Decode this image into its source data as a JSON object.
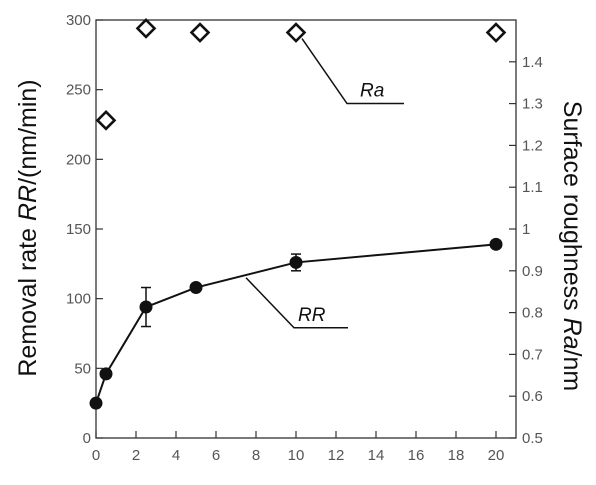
{
  "chart_data": {
    "type": "line",
    "title": "",
    "x": {
      "label": "",
      "range": [
        0,
        21
      ],
      "ticks": [
        0,
        2,
        4,
        6,
        8,
        10,
        12,
        14,
        16,
        18,
        20
      ]
    },
    "y_left": {
      "label_plain": "Removal rate ",
      "label_italic": "RR",
      "label_unit": "/(nm/min)",
      "range": [
        0,
        300
      ],
      "ticks": [
        0,
        50,
        100,
        150,
        200,
        250,
        300
      ]
    },
    "y_right": {
      "label_plain": "Surface roughness ",
      "label_italic": "Ra",
      "label_unit": "/nm",
      "range": [
        0.5,
        1.5
      ],
      "ticks": [
        0.5,
        0.6,
        0.7,
        0.8,
        0.9,
        1,
        1.1,
        1.2,
        1.3,
        1.4
      ],
      "tick_labels": [
        "0.5",
        "0.6",
        "0.7",
        "0.8",
        "0.9",
        "1",
        "1.1",
        "1.2",
        "1.3",
        "1.4"
      ]
    },
    "grid": false,
    "series": [
      {
        "name": "RR",
        "axis": "left",
        "marker": "circle",
        "line": true,
        "x": [
          0,
          0.5,
          2.5,
          5,
          10,
          20
        ],
        "y": [
          25,
          46,
          94,
          108,
          126,
          139
        ],
        "error": [
          0,
          0,
          14,
          0,
          6,
          0
        ]
      },
      {
        "name": "Ra",
        "axis": "right",
        "marker": "diamond",
        "line": false,
        "x": [
          0.5,
          2.5,
          5.2,
          10,
          20
        ],
        "y": [
          1.26,
          1.48,
          1.47,
          1.47,
          1.47
        ]
      }
    ],
    "annotations": [
      {
        "text": "Ra",
        "series": "Ra",
        "x": 10,
        "y": 1.47
      },
      {
        "text": "RR",
        "series": "RR",
        "x": 7.5,
        "y": 115
      }
    ]
  }
}
